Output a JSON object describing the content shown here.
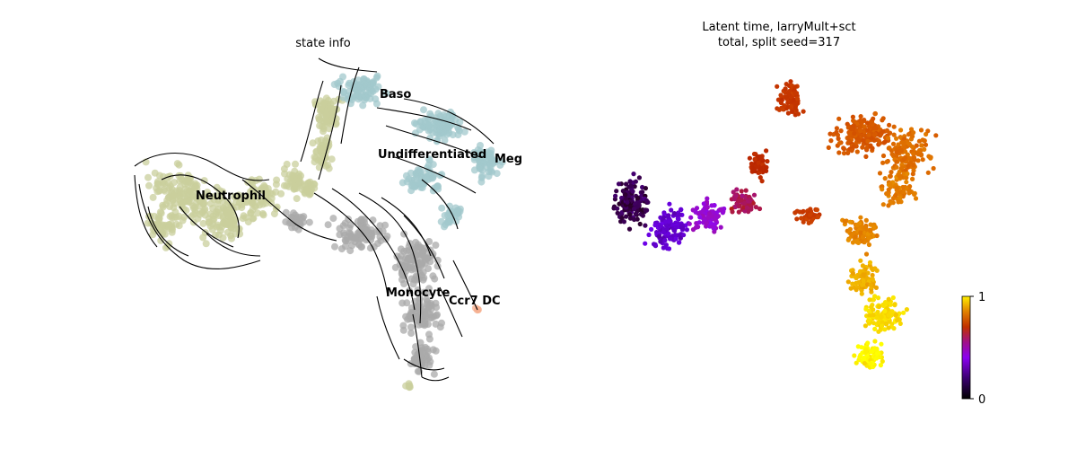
{
  "chart_data": [
    {
      "type": "scatter",
      "title": "state info",
      "clusters": [
        {
          "name": "Neutrophil",
          "color": "#c9cf9c"
        },
        {
          "name": "Baso",
          "color": "#a2c8cc"
        },
        {
          "name": "Undifferentiated",
          "color": "#a2c8cc"
        },
        {
          "name": "Meg",
          "color": "#a2c8cc"
        },
        {
          "name": "Monocyte",
          "color": "#a9a9a9"
        },
        {
          "name": "Ccr7 DC",
          "color": "#f5b090"
        }
      ],
      "overlay": "velocity-streamlines",
      "stream_color": "#000000",
      "axes_visible": false
    },
    {
      "type": "scatter",
      "title_lines": [
        "Latent time, larryMult+sct",
        "total, split seed=317"
      ],
      "colormap": "gnuplot",
      "colorbar": {
        "min_label": "0",
        "max_label": "1",
        "range": [
          0,
          1
        ]
      },
      "axes_visible": false
    }
  ]
}
